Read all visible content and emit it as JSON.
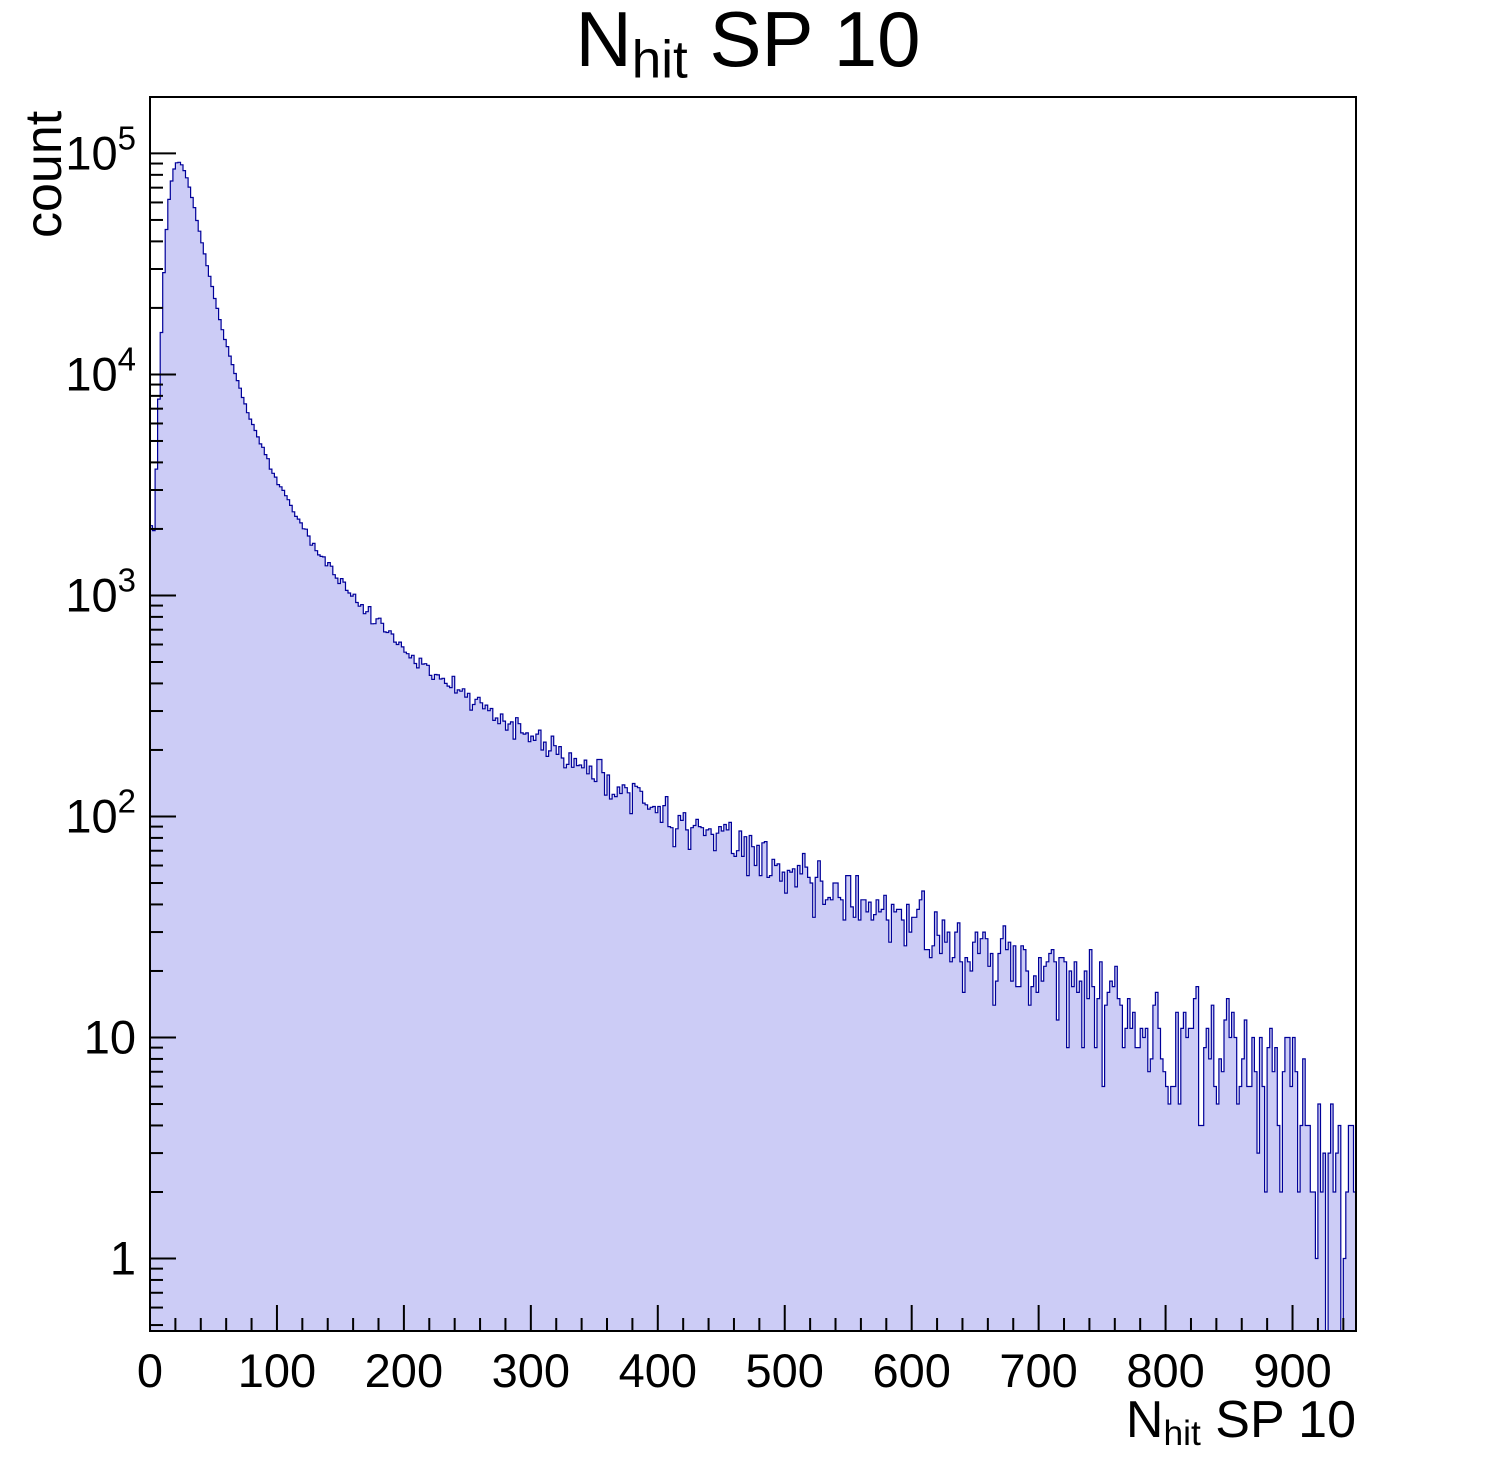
{
  "title": {
    "base": "N",
    "sub": "hit",
    "rest": " SP 10"
  },
  "y_axis": {
    "label": "count",
    "scale": "log",
    "min": 0.47,
    "max": 180000,
    "decade_labels": [
      "1",
      "10",
      "10^2",
      "10^3",
      "10^4",
      "10^5"
    ]
  },
  "x_axis": {
    "label_base": "N",
    "label_sub": "hit",
    "label_rest": " SP 10",
    "min": 0,
    "max": 950,
    "major_tick_step": 100,
    "minor_tick_step": 20,
    "tick_labels": [
      "0",
      "100",
      "200",
      "300",
      "400",
      "500",
      "600",
      "700",
      "800",
      "900"
    ]
  },
  "style": {
    "fill_color": "#ccccf6",
    "line_color": "#000099",
    "frame_color": "#000000",
    "text_color": "#000000",
    "background": "#ffffff"
  },
  "chart_data": {
    "type": "histogram",
    "title": "N_hit SP 10",
    "xlabel": "N_hit SP 10",
    "ylabel": "count",
    "x_range": [
      0,
      950
    ],
    "bin_width": 2,
    "y_scale": "log",
    "y_range": [
      0.47,
      180000
    ],
    "grid": false,
    "legend": false,
    "noise_model": "poisson",
    "seed": 11,
    "envelope_points": [
      [
        0,
        3000
      ],
      [
        2,
        1500
      ],
      [
        4,
        2600
      ],
      [
        6,
        5500
      ],
      [
        8,
        11000
      ],
      [
        10,
        22000
      ],
      [
        12,
        38000
      ],
      [
        14,
        55000
      ],
      [
        16,
        70000
      ],
      [
        18,
        81000
      ],
      [
        20,
        89000
      ],
      [
        22,
        92000
      ],
      [
        24,
        91000
      ],
      [
        26,
        87000
      ],
      [
        28,
        81000
      ],
      [
        30,
        74000
      ],
      [
        34,
        60000
      ],
      [
        38,
        47000
      ],
      [
        42,
        37000
      ],
      [
        46,
        29500
      ],
      [
        50,
        23500
      ],
      [
        55,
        17800
      ],
      [
        60,
        13800
      ],
      [
        65,
        11000
      ],
      [
        70,
        8900
      ],
      [
        75,
        7300
      ],
      [
        80,
        6100
      ],
      [
        85,
        5200
      ],
      [
        90,
        4450
      ],
      [
        95,
        3850
      ],
      [
        100,
        3350
      ],
      [
        110,
        2600
      ],
      [
        120,
        2080
      ],
      [
        130,
        1680
      ],
      [
        140,
        1380
      ],
      [
        150,
        1160
      ],
      [
        160,
        990
      ],
      [
        170,
        860
      ],
      [
        180,
        750
      ],
      [
        190,
        660
      ],
      [
        200,
        580
      ],
      [
        210,
        515
      ],
      [
        220,
        465
      ],
      [
        230,
        420
      ],
      [
        240,
        383
      ],
      [
        250,
        350
      ],
      [
        260,
        320
      ],
      [
        270,
        292
      ],
      [
        280,
        268
      ],
      [
        290,
        246
      ],
      [
        300,
        227
      ],
      [
        315,
        202
      ],
      [
        330,
        180
      ],
      [
        345,
        161
      ],
      [
        360,
        145
      ],
      [
        375,
        131
      ],
      [
        390,
        118
      ],
      [
        405,
        107
      ],
      [
        420,
        97
      ],
      [
        435,
        88
      ],
      [
        450,
        80
      ],
      [
        465,
        73
      ],
      [
        480,
        66
      ],
      [
        495,
        60
      ],
      [
        510,
        55
      ],
      [
        525,
        50
      ],
      [
        540,
        46
      ],
      [
        555,
        42
      ],
      [
        570,
        38.5
      ],
      [
        585,
        35.5
      ],
      [
        600,
        32.5
      ],
      [
        615,
        30
      ],
      [
        630,
        27.5
      ],
      [
        645,
        25.5
      ],
      [
        660,
        23.5
      ],
      [
        675,
        21.5
      ],
      [
        690,
        20
      ],
      [
        705,
        18.5
      ],
      [
        720,
        17
      ],
      [
        735,
        15.5
      ],
      [
        750,
        14.5
      ],
      [
        765,
        13.5
      ],
      [
        780,
        12.5
      ],
      [
        795,
        11.5
      ],
      [
        810,
        10.8
      ],
      [
        825,
        10
      ],
      [
        840,
        9.3
      ],
      [
        855,
        8.6
      ],
      [
        870,
        8
      ],
      [
        885,
        7
      ],
      [
        895,
        6
      ],
      [
        905,
        5
      ],
      [
        915,
        4
      ],
      [
        925,
        3
      ],
      [
        935,
        2
      ],
      [
        945,
        1.2
      ],
      [
        950,
        0.9
      ]
    ]
  }
}
